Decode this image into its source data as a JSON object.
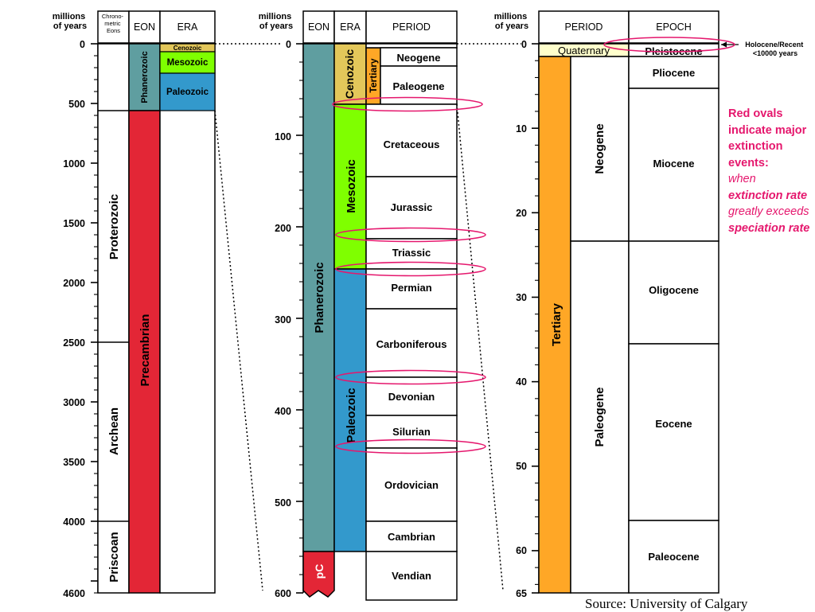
{
  "colors": {
    "phanerozoic": "#5f9ea0",
    "precambrian": "#e32636",
    "cenozoic": "#e3c75a",
    "mesozoic": "#7fff00",
    "paleozoic": "#3399cc",
    "tertiary": "#ffa726",
    "quaternary": "#ffffcc",
    "extinction": "#e5176d"
  },
  "header": {
    "myr": "millions of years",
    "chrono": "Chrono-metric Eons",
    "eon": "EON",
    "era": "ERA",
    "period": "PERIOD",
    "epoch": "EPOCH"
  },
  "panel1": {
    "ticks": [
      "0",
      "500",
      "1000",
      "1500",
      "2000",
      "2500",
      "3000",
      "3500",
      "4000",
      "4600"
    ],
    "chrono_eons": [
      "Proterozoic",
      "Archean",
      "Priscoan"
    ],
    "eons": [
      "Phanerozoic",
      "Precambrian"
    ],
    "eras": [
      "Cenozoic",
      "Mesozoic",
      "Paleozoic"
    ]
  },
  "panel2": {
    "ticks": [
      "0",
      "100",
      "200",
      "300",
      "400",
      "500",
      "600"
    ],
    "eons": [
      "Phanerozoic",
      "pC"
    ],
    "eras": [
      "Cenozoic",
      "Mesozoic",
      "Paleozoic"
    ],
    "tertiary": "Tertiary",
    "periods": [
      "Neogene",
      "Paleogene",
      "Cretaceous",
      "Jurassic",
      "Triassic",
      "Permian",
      "Carboniferous",
      "Devonian",
      "Silurian",
      "Ordovician",
      "Cambrian",
      "Vendian"
    ]
  },
  "panel3": {
    "ticks": [
      "0",
      "10",
      "20",
      "30",
      "40",
      "50",
      "60",
      "65"
    ],
    "periods": [
      "Quaternary",
      "Tertiary"
    ],
    "subperiods": [
      "Neogene",
      "Paleogene"
    ],
    "epochs": [
      "Pleistocene",
      "Pliocene",
      "Miocene",
      "Oligocene",
      "Eocene",
      "Paleocene"
    ],
    "holocene_label": "Holocene/Recent <10000 years"
  },
  "note": {
    "l1": "Red ovals indicate major extinction events:",
    "l2": "when",
    "l3": "extinction rate",
    "l4": "greatly exceeds",
    "l5": "speciation rate"
  },
  "source": "Source:  University of Calgary"
}
